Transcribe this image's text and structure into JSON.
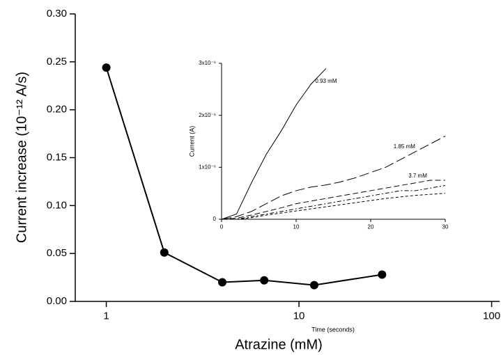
{
  "chart_data": [
    {
      "type": "line",
      "xscale": "log",
      "x_label": "Atrazine (mM)",
      "y_label": "Current increase (10⁻¹² A/s)",
      "x": [
        1,
        2,
        4,
        6.6,
        12,
        27
      ],
      "values": [
        0.244,
        0.051,
        0.02,
        0.022,
        0.017,
        0.028
      ],
      "color": "#000000",
      "xlim": [
        0.69,
        110
      ],
      "xticks": [
        1,
        10,
        100
      ],
      "ylim": [
        0,
        0.3
      ],
      "yticks": [
        {
          "value": 0,
          "label": "0.00"
        },
        {
          "value": 0.05,
          "label": "0.05"
        },
        {
          "value": 0.1,
          "label": "0.10"
        },
        {
          "value": 0.15,
          "label": "0.15"
        },
        {
          "value": 0.2,
          "label": "0.20"
        },
        {
          "value": 0.25,
          "label": "0.25"
        },
        {
          "value": 0.3,
          "label": "0.30"
        }
      ]
    },
    {
      "type": "line",
      "x_label": "Time (seconds)",
      "y_label": "Current (A)",
      "x": [
        0,
        2,
        4,
        6,
        8,
        10,
        12,
        14,
        16,
        18,
        20,
        22,
        24,
        26,
        28,
        30
      ],
      "series": [
        {
          "name": "0.93 mM",
          "color": "#000000",
          "dash": "none",
          "values": [
            0,
            1e-07,
            7e-07,
            1.25e-06,
            1.7e-06,
            2.2e-06,
            2.6e-06,
            2.9e-06,
            null,
            null,
            null,
            null,
            null,
            null,
            null,
            null
          ]
        },
        {
          "name": "1.85 mM",
          "color": "#000000",
          "dash": "14 5",
          "values": [
            0,
            5e-08,
            1.5e-07,
            3e-07,
            4.5e-07,
            5.5e-07,
            6.2e-07,
            6.6e-07,
            7.2e-07,
            8e-07,
            9e-07,
            1e-06,
            1.15e-06,
            1.3e-06,
            1.45e-06,
            1.6e-06
          ]
        },
        {
          "name": "3.7 mM",
          "color": "#000000",
          "dash": "8 4",
          "values": [
            0,
            2e-08,
            8e-08,
            1.5e-07,
            2.2e-07,
            3e-07,
            3.5e-07,
            4e-07,
            4.5e-07,
            5e-07,
            5.5e-07,
            6e-07,
            6.5e-07,
            7e-07,
            7.5e-07,
            7.5e-07
          ]
        },
        {
          "color": "#000000",
          "dash": "6 3 2 3",
          "values": [
            0,
            0,
            5e-08,
            1e-07,
            1.5e-07,
            2e-07,
            2.5e-07,
            3e-07,
            3.5e-07,
            4e-07,
            4.5e-07,
            5e-07,
            5.5e-07,
            5.5e-07,
            6e-07,
            6.5e-07
          ]
        },
        {
          "color": "#000000",
          "dash": "4 3",
          "values": [
            0,
            0,
            3e-08,
            8e-08,
            1.2e-07,
            1.6e-07,
            2e-07,
            2.4e-07,
            2.8e-07,
            3.2e-07,
            3.6e-07,
            4e-07,
            4.3e-07,
            4.6e-07,
            4.8e-07,
            5e-07
          ]
        }
      ],
      "xlim": [
        0,
        30
      ],
      "xticks": [
        0,
        10,
        20,
        30
      ],
      "ylim": [
        0,
        3e-06
      ],
      "yticks": [
        0,
        {
          "value": 1e-06,
          "label": "1x10⁻⁶"
        },
        {
          "value": 2e-06,
          "label": "2x10⁻⁶"
        },
        {
          "value": 3e-06,
          "label": "3x10⁻⁶"
        }
      ]
    }
  ]
}
